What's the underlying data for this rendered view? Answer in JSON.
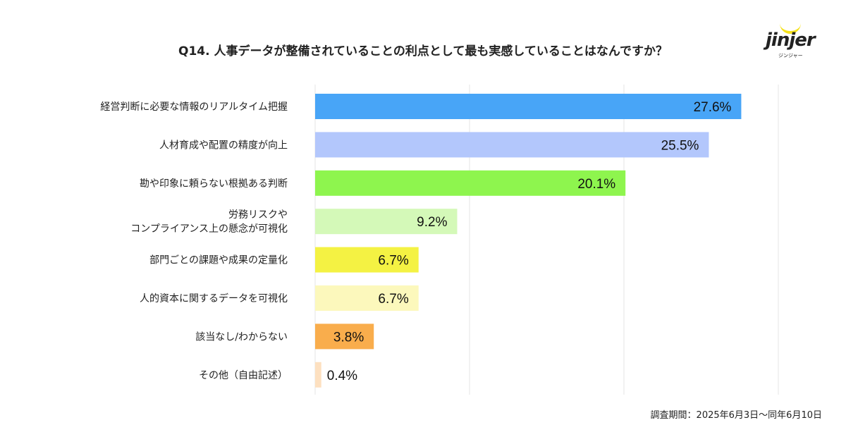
{
  "title": "Q14. 人事データが整備されていることの利点として最も実感していることはなんですか？",
  "logo": {
    "text": "jinjer",
    "subtext": "ジンジャー"
  },
  "footer": "調査期間：2025年6月3日〜同年6月10日",
  "chart_data": {
    "type": "bar",
    "orientation": "horizontal",
    "categories": [
      [
        "経営判断に必要な情報のリアルタイム把握"
      ],
      [
        "人材育成や配置の精度が向上"
      ],
      [
        "勘や印象に頼らない根拠ある判断"
      ],
      [
        "労務リスクや",
        "コンプライアンス上の懸念が可視化"
      ],
      [
        "部門ごとの課題や成果の定量化"
      ],
      [
        "人的資本に関するデータを可視化"
      ],
      [
        "該当なし/わからない"
      ],
      [
        "その他（自由記述）"
      ]
    ],
    "values": [
      27.6,
      25.5,
      20.1,
      9.2,
      6.7,
      6.7,
      3.8,
      0.4
    ],
    "labels": [
      "27.6%",
      "25.5%",
      "20.1%",
      "9.2%",
      "6.7%",
      "6.7%",
      "3.8%",
      "0.4%"
    ],
    "colors": [
      "#48a5f7",
      "#b3c7fc",
      "#8ef54e",
      "#d4f9b8",
      "#f4f243",
      "#fcf8bc",
      "#f9ad4c",
      "#fde0c0"
    ],
    "xlim": [
      0,
      30
    ],
    "grid": true,
    "gridline_color": "#e6e6e6"
  }
}
